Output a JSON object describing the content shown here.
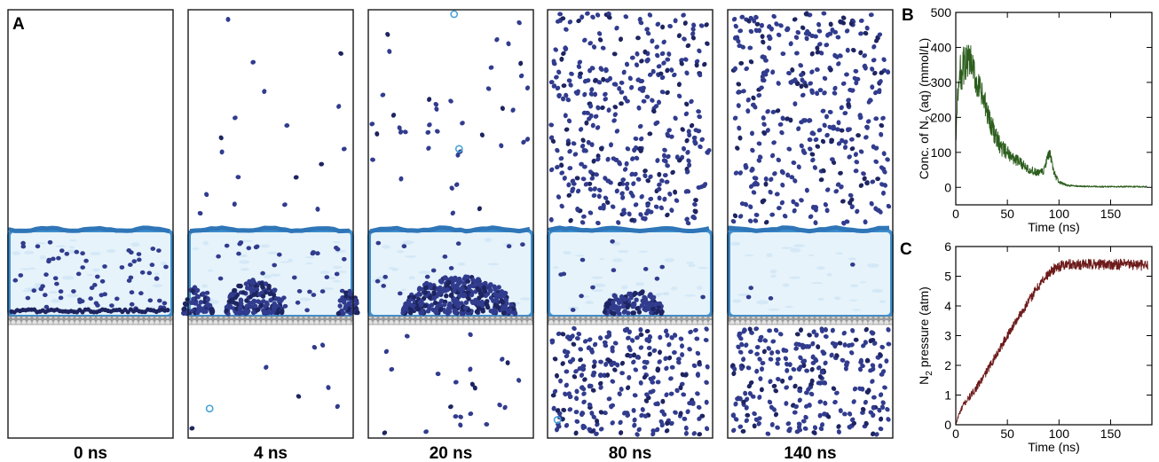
{
  "panel_labels": {
    "a": "A",
    "b": "B",
    "c": "C"
  },
  "snapshots": [
    {
      "label": "0 ns",
      "liquid_molecules": 70,
      "nucleus": null,
      "gas_top": 0,
      "gas_bottom": 0,
      "hollow_top": [],
      "hollow_bottom": []
    },
    {
      "label": "4 ns",
      "liquid_molecules": 40,
      "nucleus": [
        {
          "center": 0.4,
          "half_width": 0.17,
          "height": 0.4
        },
        {
          "center": 0.06,
          "half_width": 0.09,
          "height": 0.32
        },
        {
          "center": 0.97,
          "half_width": 0.06,
          "height": 0.28
        }
      ],
      "gas_top": 18,
      "gas_bottom": 7,
      "hollow_top": [],
      "hollow_bottom": [
        [
          0.13,
          0.74
        ]
      ]
    },
    {
      "label": "20 ns",
      "liquid_molecules": 20,
      "nucleus": [
        {
          "center": 0.55,
          "half_width": 0.34,
          "height": 0.44
        }
      ],
      "gas_top": 40,
      "gas_bottom": 22,
      "hollow_top": [
        [
          0.55,
          0.63
        ],
        [
          0.52,
          0.02
        ]
      ],
      "hollow_bottom": []
    },
    {
      "label": "80 ns",
      "liquid_molecules": 16,
      "nucleus": [
        {
          "center": 0.52,
          "half_width": 0.18,
          "height": 0.28
        }
      ],
      "gas_top": 380,
      "gas_bottom": 260,
      "hollow_top": [],
      "hollow_bottom": [
        [
          0.06,
          0.84
        ]
      ]
    },
    {
      "label": "140 ns",
      "liquid_molecules": 4,
      "nucleus": null,
      "gas_top": 360,
      "gas_bottom": 260,
      "hollow_top": [],
      "hollow_bottom": []
    }
  ],
  "colors": {
    "frame": "#1a1a1a",
    "liquid_fill": "#e6f3fb",
    "liquid_outline": "#3f8fd0",
    "molecule": "#313c8e",
    "molecule_dark": "#1d2460",
    "hollow_molecule": "#49a3d8",
    "substrate": "#bdbdbd",
    "series_b": "#2d5e1e",
    "series_c": "#6e1b1b"
  },
  "chart_data": [
    {
      "type": "line",
      "panel": "B",
      "title": "",
      "xlabel": "Time (ns)",
      "ylabel": {
        "prefix": "Conc. of N",
        "sub": "2",
        "suffix": " (aq) (mmol/L)"
      },
      "xlim": [
        0,
        190
      ],
      "ylim": [
        -50,
        500
      ],
      "xticks": [
        0,
        50,
        100,
        150
      ],
      "yticks": [
        0,
        100,
        200,
        300,
        400,
        500
      ],
      "series": [
        {
          "x": [
            0,
            2,
            4,
            7,
            10,
            14,
            18,
            22,
            26,
            30,
            35,
            40,
            45,
            50,
            55,
            60,
            65,
            70,
            75,
            80,
            85,
            88,
            91,
            94,
            97,
            100,
            105,
            110,
            120,
            140,
            160,
            185
          ],
          "y": [
            150,
            260,
            320,
            345,
            355,
            360,
            320,
            285,
            255,
            220,
            175,
            135,
            110,
            100,
            85,
            75,
            65,
            55,
            45,
            40,
            45,
            75,
            100,
            55,
            30,
            15,
            8,
            5,
            3,
            2,
            2,
            2
          ],
          "noise": [
            30,
            40,
            55,
            60,
            55,
            50,
            48,
            45,
            40,
            38,
            32,
            28,
            24,
            20,
            18,
            16,
            14,
            13,
            12,
            11,
            12,
            14,
            14,
            12,
            9,
            6,
            4,
            3,
            2,
            2,
            2,
            2
          ]
        }
      ]
    },
    {
      "type": "line",
      "panel": "C",
      "title": "",
      "xlabel": "Time (ns)",
      "ylabel": {
        "prefix": "N",
        "sub": "2",
        "suffix": " pressure (atm)"
      },
      "xlim": [
        0,
        190
      ],
      "ylim": [
        0,
        6
      ],
      "xticks": [
        0,
        50,
        100,
        150
      ],
      "yticks": [
        0,
        1,
        2,
        3,
        4,
        5,
        6
      ],
      "series": [
        {
          "x": [
            0,
            3,
            8,
            15,
            25,
            35,
            45,
            55,
            65,
            75,
            85,
            92,
            97,
            102,
            110,
            130,
            150,
            170,
            186
          ],
          "y": [
            0.0,
            0.35,
            0.7,
            1.0,
            1.5,
            2.1,
            2.7,
            3.3,
            3.85,
            4.4,
            4.9,
            5.15,
            5.3,
            5.35,
            5.4,
            5.4,
            5.4,
            5.4,
            5.35
          ],
          "noise": [
            0.02,
            0.08,
            0.1,
            0.12,
            0.13,
            0.14,
            0.14,
            0.15,
            0.15,
            0.16,
            0.16,
            0.17,
            0.17,
            0.18,
            0.18,
            0.18,
            0.18,
            0.18,
            0.18
          ]
        }
      ]
    }
  ]
}
